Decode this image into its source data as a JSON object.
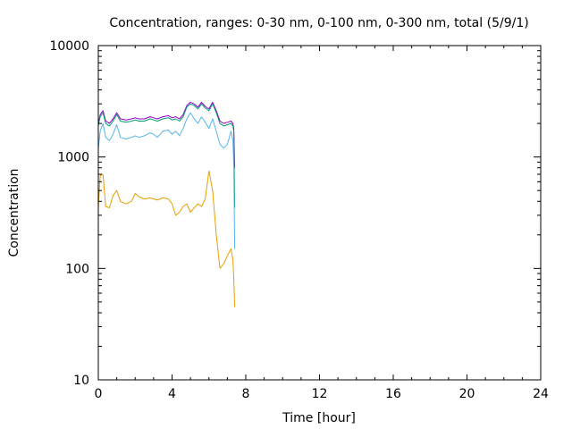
{
  "chart_data": {
    "type": "line",
    "title": "Concentration, ranges: 0-30 nm, 0-100 nm, 0-300 nm, total (5/9/1)",
    "xlabel": "Time [hour]",
    "ylabel": "Concentration",
    "xlim": [
      0,
      24
    ],
    "ylim": [
      10,
      10000
    ],
    "yscale": "log",
    "grid": false,
    "x_ticks": [
      "0",
      "4",
      "8",
      "12",
      "16",
      "20",
      "24"
    ],
    "y_ticks": [
      "10",
      "100",
      "1000",
      "10000"
    ],
    "colors": {
      "series_0_30": "#e69f00",
      "series_0_100": "#56b4e9",
      "series_0_300": "#009e73",
      "series_total": "#9400d3"
    },
    "x": [
      0.0,
      0.1,
      0.25,
      0.4,
      0.6,
      0.8,
      1.0,
      1.2,
      1.5,
      1.8,
      2.0,
      2.2,
      2.5,
      2.8,
      3.0,
      3.2,
      3.5,
      3.8,
      4.0,
      4.2,
      4.4,
      4.6,
      4.8,
      5.0,
      5.2,
      5.4,
      5.6,
      5.8,
      6.0,
      6.2,
      6.4,
      6.6,
      6.8,
      7.0,
      7.2,
      7.3,
      7.35,
      7.4
    ],
    "series": [
      {
        "key": "series_total",
        "values": [
          2000,
          2400,
          2600,
          2100,
          2000,
          2200,
          2500,
          2200,
          2150,
          2200,
          2250,
          2200,
          2200,
          2300,
          2250,
          2200,
          2300,
          2350,
          2250,
          2300,
          2200,
          2400,
          2900,
          3100,
          3000,
          2800,
          3100,
          2850,
          2700,
          3100,
          2600,
          2100,
          2000,
          2050,
          2100,
          2000,
          1800,
          800
        ]
      },
      {
        "key": "series_0_300",
        "values": [
          1900,
          2300,
          2500,
          2000,
          1900,
          2100,
          2400,
          2100,
          2050,
          2100,
          2150,
          2100,
          2100,
          2200,
          2150,
          2100,
          2200,
          2250,
          2150,
          2200,
          2100,
          2300,
          2800,
          3000,
          2900,
          2700,
          3000,
          2750,
          2600,
          3000,
          2500,
          2000,
          1900,
          1950,
          2000,
          1900,
          1700,
          350
        ]
      },
      {
        "key": "series_0_100",
        "values": [
          1200,
          1700,
          2000,
          1500,
          1400,
          1600,
          1950,
          1500,
          1450,
          1500,
          1550,
          1500,
          1550,
          1650,
          1600,
          1500,
          1700,
          1750,
          1600,
          1700,
          1550,
          1800,
          2200,
          2500,
          2200,
          2000,
          2300,
          2050,
          1800,
          2200,
          1700,
          1300,
          1200,
          1300,
          1700,
          1400,
          800,
          150
        ]
      },
      {
        "key": "series_0_30",
        "values": [
          350,
          680,
          700,
          360,
          350,
          450,
          500,
          400,
          380,
          400,
          470,
          440,
          420,
          430,
          420,
          410,
          430,
          420,
          380,
          300,
          320,
          360,
          380,
          320,
          350,
          380,
          360,
          420,
          750,
          500,
          200,
          100,
          110,
          130,
          150,
          120,
          80,
          45
        ]
      }
    ]
  }
}
